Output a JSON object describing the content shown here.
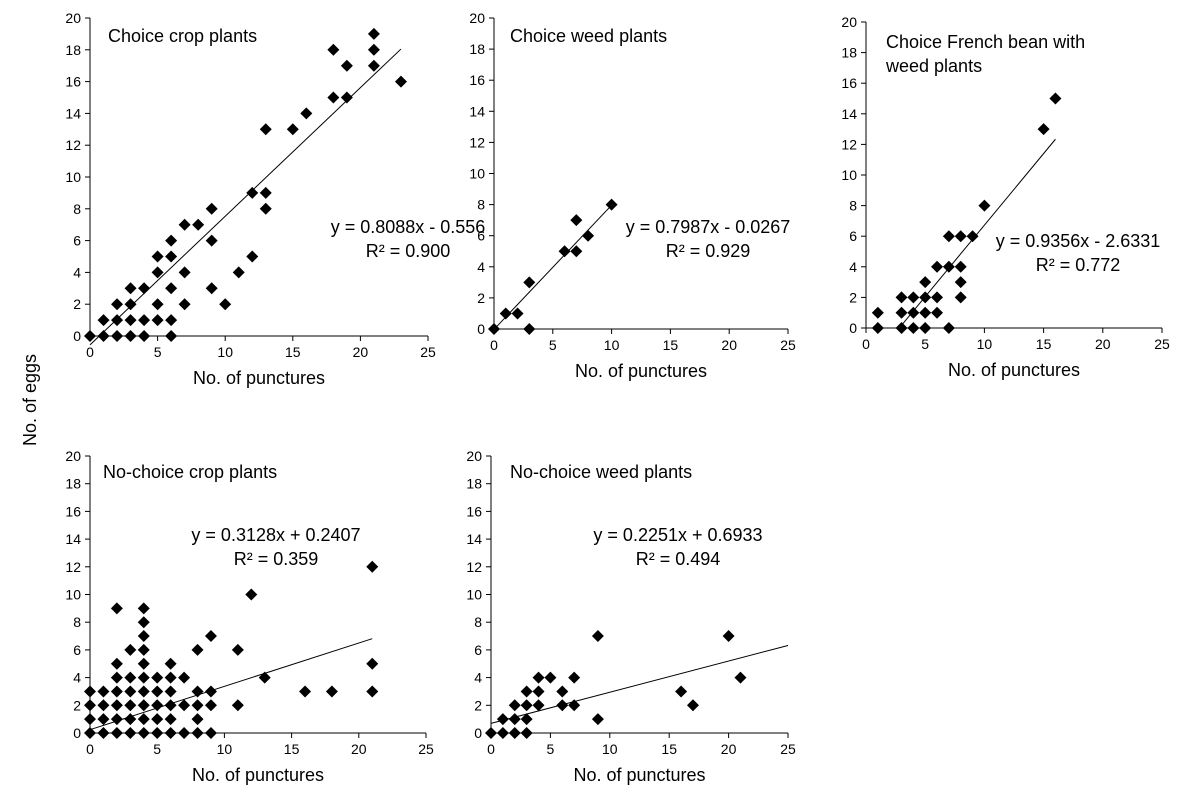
{
  "figure": {
    "ylabel": "No. of eggs"
  },
  "chart_data": [
    {
      "type": "scatter",
      "title": "Choice crop plants",
      "xlabel": "No. of punctures",
      "xlim": [
        0,
        25
      ],
      "ylim": [
        0,
        20
      ],
      "xticks": [
        "0",
        "5",
        "10",
        "15",
        "20",
        "25"
      ],
      "yticks": [
        "0",
        "2",
        "4",
        "6",
        "8",
        "10",
        "12",
        "14",
        "16",
        "18",
        "20"
      ],
      "equation": "y = 0.8088x - 0.556",
      "r2": "R² = 0.900",
      "trend": {
        "slope": 0.8088,
        "intercept": -0.556,
        "x_range": [
          0,
          23
        ]
      },
      "marker_color": "#000000",
      "points": [
        [
          0,
          0
        ],
        [
          1,
          0
        ],
        [
          1,
          1
        ],
        [
          2,
          0
        ],
        [
          2,
          1
        ],
        [
          2,
          2
        ],
        [
          3,
          0
        ],
        [
          3,
          1
        ],
        [
          3,
          2
        ],
        [
          3,
          3
        ],
        [
          4,
          0
        ],
        [
          4,
          1
        ],
        [
          4,
          3
        ],
        [
          5,
          1
        ],
        [
          5,
          2
        ],
        [
          5,
          4
        ],
        [
          5,
          5
        ],
        [
          6,
          0
        ],
        [
          6,
          1
        ],
        [
          6,
          3
        ],
        [
          6,
          5
        ],
        [
          6,
          6
        ],
        [
          7,
          2
        ],
        [
          7,
          4
        ],
        [
          7,
          7
        ],
        [
          8,
          7
        ],
        [
          9,
          3
        ],
        [
          9,
          6
        ],
        [
          9,
          8
        ],
        [
          10,
          2
        ],
        [
          11,
          4
        ],
        [
          12,
          5
        ],
        [
          12,
          9
        ],
        [
          13,
          8
        ],
        [
          13,
          9
        ],
        [
          13,
          13
        ],
        [
          15,
          13
        ],
        [
          16,
          14
        ],
        [
          18,
          15
        ],
        [
          18,
          18
        ],
        [
          19,
          15
        ],
        [
          19,
          17
        ],
        [
          21,
          17
        ],
        [
          21,
          18
        ],
        [
          21,
          19
        ],
        [
          23,
          16
        ]
      ]
    },
    {
      "type": "scatter",
      "title": "Choice weed plants",
      "xlabel": "No. of punctures",
      "xlim": [
        0,
        25
      ],
      "ylim": [
        0,
        20
      ],
      "xticks": [
        "0",
        "5",
        "10",
        "15",
        "20",
        "25"
      ],
      "yticks": [
        "0",
        "2",
        "4",
        "6",
        "8",
        "10",
        "12",
        "14",
        "16",
        "18",
        "20"
      ],
      "equation": "y = 0.7987x - 0.0267",
      "r2": "R² = 0.929",
      "trend": {
        "slope": 0.7987,
        "intercept": -0.0267,
        "x_range": [
          0,
          10
        ]
      },
      "marker_color": "#000000",
      "points": [
        [
          0,
          0
        ],
        [
          1,
          1
        ],
        [
          2,
          1
        ],
        [
          3,
          0
        ],
        [
          3,
          3
        ],
        [
          6,
          5
        ],
        [
          7,
          5
        ],
        [
          7,
          7
        ],
        [
          8,
          6
        ],
        [
          10,
          8
        ]
      ]
    },
    {
      "type": "scatter",
      "title": "Choice French bean with weed plants",
      "xlabel": "No. of punctures",
      "xlim": [
        0,
        25
      ],
      "ylim": [
        0,
        20
      ],
      "xticks": [
        "0",
        "5",
        "10",
        "15",
        "20",
        "25"
      ],
      "yticks": [
        "0",
        "2",
        "4",
        "6",
        "8",
        "10",
        "12",
        "14",
        "16",
        "18",
        "20"
      ],
      "equation": "y = 0.9356x - 2.6331",
      "r2": "R² = 0.772",
      "trend": {
        "slope": 0.9356,
        "intercept": -2.6331,
        "x_range": [
          3,
          16
        ]
      },
      "marker_color": "#000000",
      "points": [
        [
          1,
          0
        ],
        [
          1,
          1
        ],
        [
          3,
          0
        ],
        [
          3,
          1
        ],
        [
          3,
          2
        ],
        [
          4,
          0
        ],
        [
          4,
          1
        ],
        [
          4,
          2
        ],
        [
          5,
          0
        ],
        [
          5,
          1
        ],
        [
          5,
          2
        ],
        [
          5,
          3
        ],
        [
          6,
          1
        ],
        [
          6,
          2
        ],
        [
          6,
          4
        ],
        [
          7,
          0
        ],
        [
          7,
          4
        ],
        [
          7,
          6
        ],
        [
          8,
          2
        ],
        [
          8,
          3
        ],
        [
          8,
          4
        ],
        [
          8,
          6
        ],
        [
          9,
          6
        ],
        [
          10,
          8
        ],
        [
          15,
          13
        ],
        [
          16,
          15
        ]
      ]
    },
    {
      "type": "scatter",
      "title": "No-choice crop plants",
      "xlabel": "No. of punctures",
      "xlim": [
        0,
        25
      ],
      "ylim": [
        0,
        20
      ],
      "xticks": [
        "0",
        "5",
        "10",
        "15",
        "20",
        "25"
      ],
      "yticks": [
        "0",
        "2",
        "4",
        "6",
        "8",
        "10",
        "12",
        "14",
        "16",
        "18",
        "20"
      ],
      "equation": "y = 0.3128x + 0.2407",
      "r2": "R² = 0.359",
      "trend": {
        "slope": 0.3128,
        "intercept": 0.2407,
        "x_range": [
          0,
          21
        ]
      },
      "marker_color": "#000000",
      "points": [
        [
          0,
          0
        ],
        [
          0,
          1
        ],
        [
          0,
          2
        ],
        [
          0,
          3
        ],
        [
          1,
          0
        ],
        [
          1,
          1
        ],
        [
          1,
          2
        ],
        [
          1,
          3
        ],
        [
          2,
          0
        ],
        [
          2,
          1
        ],
        [
          2,
          2
        ],
        [
          2,
          3
        ],
        [
          2,
          4
        ],
        [
          2,
          5
        ],
        [
          2,
          9
        ],
        [
          3,
          0
        ],
        [
          3,
          1
        ],
        [
          3,
          2
        ],
        [
          3,
          3
        ],
        [
          3,
          4
        ],
        [
          3,
          6
        ],
        [
          4,
          0
        ],
        [
          4,
          1
        ],
        [
          4,
          2
        ],
        [
          4,
          3
        ],
        [
          4,
          4
        ],
        [
          4,
          5
        ],
        [
          4,
          6
        ],
        [
          4,
          7
        ],
        [
          4,
          8
        ],
        [
          4,
          9
        ],
        [
          5,
          0
        ],
        [
          5,
          1
        ],
        [
          5,
          2
        ],
        [
          5,
          3
        ],
        [
          5,
          4
        ],
        [
          6,
          0
        ],
        [
          6,
          1
        ],
        [
          6,
          2
        ],
        [
          6,
          3
        ],
        [
          6,
          4
        ],
        [
          6,
          5
        ],
        [
          7,
          0
        ],
        [
          7,
          2
        ],
        [
          7,
          4
        ],
        [
          8,
          0
        ],
        [
          8,
          1
        ],
        [
          8,
          2
        ],
        [
          8,
          3
        ],
        [
          8,
          6
        ],
        [
          9,
          0
        ],
        [
          9,
          2
        ],
        [
          9,
          3
        ],
        [
          9,
          7
        ],
        [
          11,
          2
        ],
        [
          11,
          6
        ],
        [
          12,
          10
        ],
        [
          13,
          4
        ],
        [
          16,
          3
        ],
        [
          18,
          3
        ],
        [
          21,
          3
        ],
        [
          21,
          5
        ],
        [
          21,
          12
        ]
      ]
    },
    {
      "type": "scatter",
      "title": "No-choice weed plants",
      "xlabel": "No. of punctures",
      "xlim": [
        0,
        25
      ],
      "ylim": [
        0,
        20
      ],
      "xticks": [
        "0",
        "5",
        "10",
        "15",
        "20",
        "25"
      ],
      "yticks": [
        "0",
        "2",
        "4",
        "6",
        "8",
        "10",
        "12",
        "14",
        "16",
        "18",
        "20"
      ],
      "equation": "y = 0.2251x + 0.6933",
      "r2": "R² = 0.494",
      "trend": {
        "slope": 0.2251,
        "intercept": 0.6933,
        "x_range": [
          0,
          25
        ]
      },
      "marker_color": "#000000",
      "points": [
        [
          0,
          0
        ],
        [
          1,
          0
        ],
        [
          1,
          1
        ],
        [
          2,
          0
        ],
        [
          2,
          1
        ],
        [
          2,
          2
        ],
        [
          3,
          0
        ],
        [
          3,
          1
        ],
        [
          3,
          2
        ],
        [
          3,
          3
        ],
        [
          4,
          2
        ],
        [
          4,
          3
        ],
        [
          4,
          4
        ],
        [
          5,
          4
        ],
        [
          6,
          2
        ],
        [
          6,
          3
        ],
        [
          7,
          2
        ],
        [
          7,
          4
        ],
        [
          9,
          1
        ],
        [
          9,
          7
        ],
        [
          16,
          3
        ],
        [
          17,
          2
        ],
        [
          20,
          7
        ],
        [
          21,
          4
        ]
      ]
    }
  ]
}
